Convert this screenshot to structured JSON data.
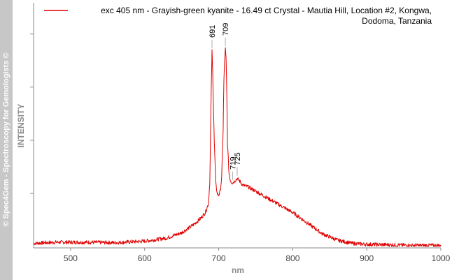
{
  "watermark": "© Spec4Gem - Spectroscopy for Gemologists ©",
  "chart_data": {
    "type": "line",
    "xlabel": "nm",
    "ylabel": "INTENSITY",
    "xlim": [
      450,
      1000
    ],
    "ylim": [
      0,
      1
    ],
    "x_ticks": [
      500,
      600,
      700,
      800,
      900,
      1000
    ],
    "y_ticks_labeled": false,
    "grid": false,
    "legend_position": "top-right",
    "legend_lines": [
      "exc 405 nm - Grayish-green kyanite - 16.49 ct Crystal - Mautia Hill, Location #2, Kongwa,",
      "Dodoma, Tanzania"
    ],
    "series": [
      {
        "name": "exc 405 nm - Grayish-green kyanite - 16.49 ct Crystal - Mautia Hill, Location #2, Kongwa, Dodoma, Tanzania",
        "color": "#e00000",
        "x": [
          450,
          480,
          520,
          560,
          600,
          630,
          650,
          665,
          675,
          682,
          686,
          688,
          690,
          691,
          692,
          694,
          696,
          698,
          700,
          702,
          704,
          706,
          707,
          708,
          709,
          710,
          711,
          712,
          714,
          716,
          718,
          719,
          722,
          725,
          728,
          732,
          740,
          750,
          760,
          780,
          800,
          820,
          840,
          860,
          880,
          900,
          930,
          960,
          1000
        ],
        "y": [
          0.015,
          0.02,
          0.02,
          0.018,
          0.025,
          0.04,
          0.065,
          0.1,
          0.13,
          0.16,
          0.2,
          0.3,
          0.75,
          0.92,
          0.8,
          0.5,
          0.3,
          0.25,
          0.24,
          0.26,
          0.32,
          0.55,
          0.78,
          0.87,
          0.93,
          0.88,
          0.7,
          0.48,
          0.34,
          0.31,
          0.3,
          0.3,
          0.31,
          0.32,
          0.31,
          0.29,
          0.28,
          0.26,
          0.24,
          0.2,
          0.16,
          0.11,
          0.06,
          0.03,
          0.015,
          0.01,
          0.008,
          0.005,
          0.005
        ]
      }
    ],
    "annotations": [
      "691",
      "709",
      "719",
      "725"
    ]
  }
}
